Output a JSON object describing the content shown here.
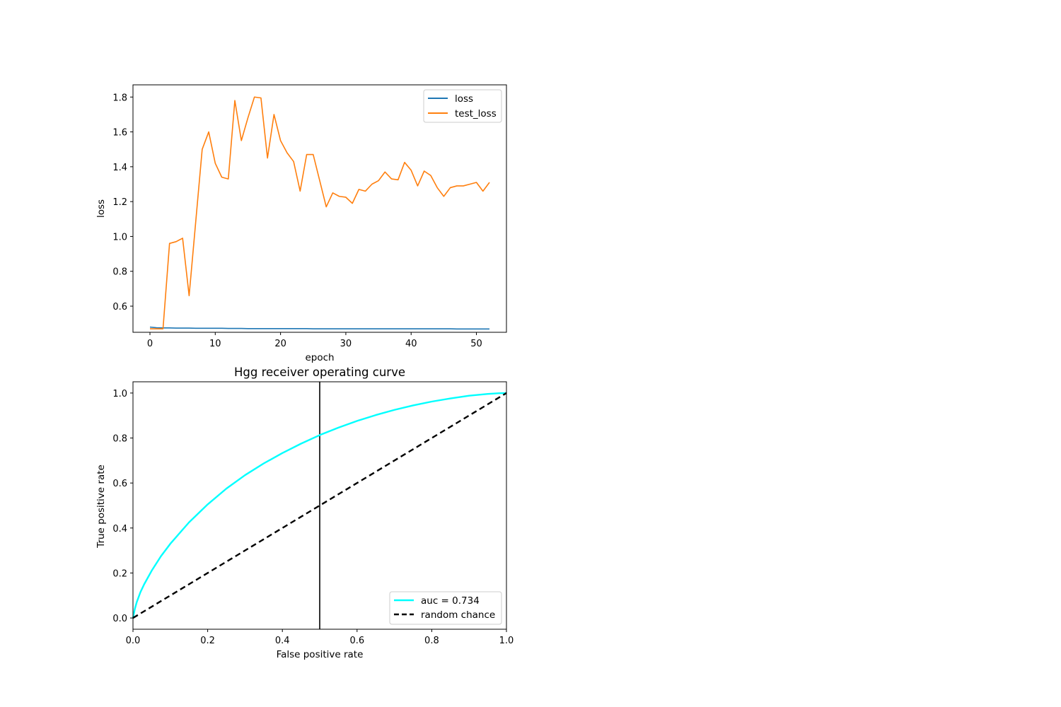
{
  "chart_data": [
    {
      "type": "line",
      "title": "",
      "xlabel": "epoch",
      "ylabel": "loss",
      "xlim": [
        -2.6,
        54.6
      ],
      "ylim": [
        0.45,
        1.87
      ],
      "xticks": [
        0,
        10,
        20,
        30,
        40,
        50
      ],
      "yticks": [
        0.6,
        0.8,
        1.0,
        1.2,
        1.4,
        1.6,
        1.8
      ],
      "xtick_labels": [
        "0",
        "10",
        "20",
        "30",
        "40",
        "50"
      ],
      "ytick_labels": [
        "0.6",
        "0.8",
        "1.0",
        "1.2",
        "1.4",
        "1.6",
        "1.8"
      ],
      "grid": false,
      "legend_position": "upper-right",
      "x": [
        0,
        1,
        2,
        3,
        4,
        5,
        6,
        7,
        8,
        9,
        10,
        11,
        12,
        13,
        14,
        15,
        16,
        17,
        18,
        19,
        20,
        21,
        22,
        23,
        24,
        25,
        26,
        27,
        28,
        29,
        30,
        31,
        32,
        33,
        34,
        35,
        36,
        37,
        38,
        39,
        40,
        41,
        42,
        43,
        44,
        45,
        46,
        47,
        48,
        49,
        50,
        51,
        52
      ],
      "series": [
        {
          "name": "loss",
          "color": "#1f77b4",
          "values": [
            0.48,
            0.476,
            0.475,
            0.475,
            0.474,
            0.474,
            0.474,
            0.473,
            0.473,
            0.473,
            0.473,
            0.473,
            0.472,
            0.472,
            0.472,
            0.471,
            0.471,
            0.471,
            0.471,
            0.471,
            0.471,
            0.471,
            0.471,
            0.471,
            0.471,
            0.47,
            0.47,
            0.47,
            0.47,
            0.47,
            0.47,
            0.47,
            0.47,
            0.47,
            0.47,
            0.47,
            0.47,
            0.47,
            0.47,
            0.47,
            0.47,
            0.47,
            0.47,
            0.47,
            0.47,
            0.47,
            0.47,
            0.469,
            0.469,
            0.469,
            0.469,
            0.469,
            0.469
          ]
        },
        {
          "name": "test_loss",
          "color": "#ff7f0e",
          "values": [
            0.47,
            0.47,
            0.47,
            0.96,
            0.97,
            0.99,
            0.66,
            1.08,
            1.5,
            1.6,
            1.42,
            1.34,
            1.33,
            1.78,
            1.55,
            1.68,
            1.8,
            1.795,
            1.45,
            1.7,
            1.55,
            1.48,
            1.43,
            1.26,
            1.47,
            1.47,
            1.32,
            1.17,
            1.25,
            1.23,
            1.225,
            1.19,
            1.27,
            1.26,
            1.3,
            1.32,
            1.37,
            1.33,
            1.325,
            1.425,
            1.38,
            1.29,
            1.375,
            1.35,
            1.28,
            1.23,
            1.28,
            1.29,
            1.29,
            1.3,
            1.31,
            1.26,
            1.31
          ]
        }
      ]
    },
    {
      "type": "line",
      "title": "Hgg receiver operating curve",
      "xlabel": "False positive rate",
      "ylabel": "True positive rate",
      "xlim": [
        0.0,
        1.0
      ],
      "ylim": [
        -0.05,
        1.05
      ],
      "xticks": [
        0.0,
        0.2,
        0.4,
        0.6,
        0.8,
        1.0
      ],
      "yticks": [
        0.0,
        0.2,
        0.4,
        0.6,
        0.8,
        1.0
      ],
      "xtick_labels": [
        "0.0",
        "0.2",
        "0.4",
        "0.6",
        "0.8",
        "1.0"
      ],
      "ytick_labels": [
        "0.0",
        "0.2",
        "0.4",
        "0.6",
        "0.8",
        "1.0"
      ],
      "grid": false,
      "legend_position": "lower-right",
      "series": [
        {
          "name": "auc = 0.734",
          "color": "#00ffff",
          "style": "solid",
          "x": [
            0.0,
            0.005,
            0.01,
            0.02,
            0.03,
            0.05,
            0.075,
            0.1,
            0.15,
            0.2,
            0.25,
            0.3,
            0.35,
            0.4,
            0.45,
            0.5,
            0.55,
            0.6,
            0.65,
            0.7,
            0.75,
            0.8,
            0.85,
            0.9,
            0.95,
            0.98,
            1.0
          ],
          "y": [
            0.0,
            0.04,
            0.07,
            0.115,
            0.15,
            0.21,
            0.275,
            0.33,
            0.425,
            0.505,
            0.575,
            0.635,
            0.687,
            0.733,
            0.775,
            0.813,
            0.846,
            0.876,
            0.902,
            0.925,
            0.945,
            0.962,
            0.976,
            0.988,
            0.996,
            0.999,
            1.0
          ]
        },
        {
          "name": "random chance",
          "color": "#000000",
          "style": "dashed",
          "x": [
            0.0,
            1.0
          ],
          "y": [
            0.0,
            1.0
          ]
        }
      ],
      "vertical_line": {
        "x": 0.5,
        "color": "#000000"
      }
    }
  ]
}
